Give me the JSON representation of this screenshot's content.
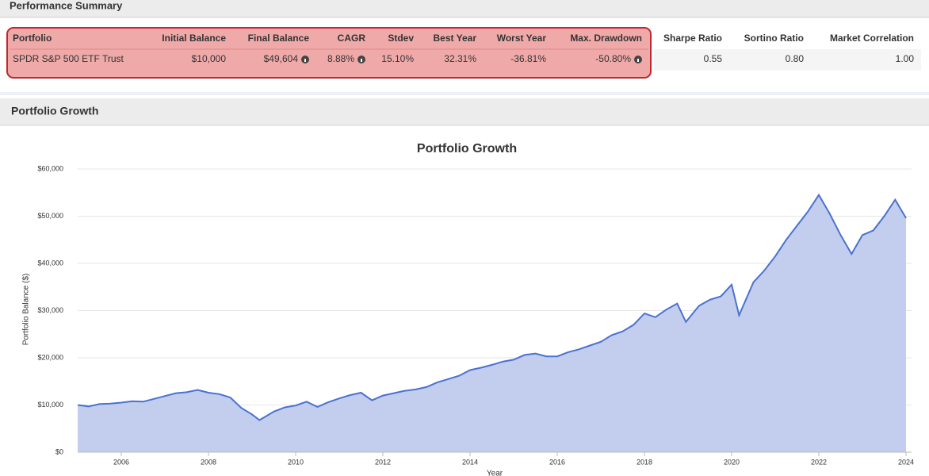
{
  "sections": {
    "summary": "Performance Summary",
    "growth": "Portfolio Growth"
  },
  "table": {
    "header": [
      "Portfolio",
      "Initial Balance",
      "Final Balance",
      "CAGR",
      "Stdev",
      "Best Year",
      "Worst Year",
      "Max. Drawdown",
      "Sharpe Ratio",
      "Sortino Ratio",
      "Market Correlation"
    ],
    "rows": [
      [
        "SPDR S&P 500 ETF Trust",
        "$10,000",
        "$49,604",
        "8.88%",
        "15.10%",
        "32.31%",
        "-36.81%",
        "-50.80%",
        "0.55",
        "0.80",
        "1.00"
      ]
    ]
  },
  "chart_data": {
    "type": "area",
    "title": "Portfolio Growth",
    "xlabel": "Year",
    "ylabel": "Portfolio Balance ($)",
    "xlim": [
      2005,
      2024
    ],
    "xticks": [
      2006,
      2008,
      2010,
      2012,
      2014,
      2016,
      2018,
      2020,
      2022,
      2024
    ],
    "ylim": [
      0,
      60000
    ],
    "yticks": [
      {
        "value": 0,
        "label": "$0"
      },
      {
        "value": 10000,
        "label": "$10,000"
      },
      {
        "value": 20000,
        "label": "$20,000"
      },
      {
        "value": 30000,
        "label": "$30,000"
      },
      {
        "value": 40000,
        "label": "$40,000"
      },
      {
        "value": 50000,
        "label": "$50,000"
      },
      {
        "value": 60000,
        "label": "$60,000"
      }
    ],
    "grid": true,
    "color": "#4a72cf",
    "fill": "#c3cdee",
    "x": [
      2005.0,
      2005.25,
      2005.5,
      2005.75,
      2006.0,
      2006.25,
      2006.5,
      2006.75,
      2007.0,
      2007.25,
      2007.5,
      2007.75,
      2008.0,
      2008.25,
      2008.5,
      2008.75,
      2009.0,
      2009.17,
      2009.5,
      2009.75,
      2010.0,
      2010.25,
      2010.5,
      2010.75,
      2011.0,
      2011.25,
      2011.5,
      2011.75,
      2012.0,
      2012.25,
      2012.5,
      2012.75,
      2013.0,
      2013.25,
      2013.5,
      2013.75,
      2014.0,
      2014.25,
      2014.5,
      2014.75,
      2015.0,
      2015.25,
      2015.5,
      2015.75,
      2016.0,
      2016.25,
      2016.5,
      2016.75,
      2017.0,
      2017.25,
      2017.5,
      2017.75,
      2018.0,
      2018.25,
      2018.5,
      2018.75,
      2018.95,
      2019.25,
      2019.5,
      2019.75,
      2020.0,
      2020.17,
      2020.5,
      2020.75,
      2021.0,
      2021.25,
      2021.5,
      2021.75,
      2022.0,
      2022.25,
      2022.5,
      2022.75,
      2023.0,
      2023.25,
      2023.5,
      2023.75,
      2024.0
    ],
    "values": [
      10000,
      9700,
      10200,
      10300,
      10500,
      10800,
      10700,
      11300,
      11900,
      12500,
      12700,
      13200,
      12600,
      12300,
      11600,
      9400,
      8000,
      6800,
      8600,
      9500,
      9900,
      10700,
      9600,
      10600,
      11400,
      12100,
      12600,
      11000,
      12000,
      12500,
      13000,
      13300,
      13800,
      14800,
      15500,
      16200,
      17400,
      17900,
      18500,
      19200,
      19600,
      20600,
      20900,
      20300,
      20300,
      21200,
      21800,
      22600,
      23400,
      24800,
      25600,
      27000,
      29400,
      28600,
      30200,
      31500,
      27600,
      31000,
      32300,
      33000,
      35500,
      29000,
      36000,
      38500,
      41500,
      45000,
      48000,
      51000,
      54500,
      50500,
      46000,
      42000,
      46000,
      47000,
      50000,
      53500,
      49600
    ]
  }
}
